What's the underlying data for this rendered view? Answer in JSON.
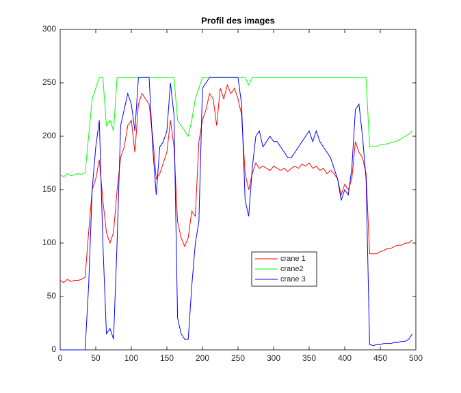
{
  "chart_data": {
    "type": "line",
    "title": "Profil des images",
    "x": [
      0,
      5,
      10,
      15,
      20,
      25,
      30,
      35,
      40,
      45,
      50,
      55,
      60,
      65,
      70,
      75,
      80,
      85,
      90,
      95,
      100,
      105,
      110,
      115,
      120,
      125,
      130,
      135,
      140,
      145,
      150,
      155,
      160,
      165,
      170,
      175,
      180,
      185,
      190,
      195,
      200,
      205,
      210,
      215,
      220,
      225,
      230,
      235,
      240,
      245,
      250,
      255,
      260,
      265,
      270,
      275,
      280,
      285,
      290,
      295,
      300,
      305,
      310,
      315,
      320,
      325,
      330,
      335,
      340,
      345,
      350,
      355,
      360,
      365,
      370,
      375,
      380,
      385,
      390,
      395,
      400,
      405,
      410,
      415,
      420,
      425,
      430,
      435,
      440,
      445,
      450,
      455,
      460,
      465,
      470,
      475,
      480,
      485,
      490,
      495
    ],
    "series": [
      {
        "name": "crane 1",
        "color": "#ff0000",
        "values": [
          65,
          63,
          66,
          64,
          65,
          65,
          66,
          68,
          110,
          150,
          160,
          178,
          140,
          110,
          100,
          110,
          150,
          180,
          190,
          210,
          215,
          185,
          230,
          240,
          235,
          230,
          200,
          160,
          165,
          175,
          185,
          215,
          190,
          120,
          105,
          97,
          105,
          130,
          125,
          195,
          215,
          225,
          240,
          235,
          210,
          245,
          235,
          248,
          240,
          245,
          235,
          220,
          165,
          150,
          165,
          175,
          170,
          172,
          170,
          168,
          172,
          170,
          168,
          170,
          167,
          170,
          172,
          170,
          174,
          172,
          175,
          170,
          172,
          168,
          170,
          165,
          168,
          165,
          160,
          145,
          155,
          150,
          160,
          195,
          185,
          180,
          165,
          90,
          90,
          90,
          92,
          93,
          95,
          95,
          97,
          98,
          98,
          100,
          100,
          103
        ]
      },
      {
        "name": "crane2",
        "color": "#00ff00",
        "values": [
          164,
          162,
          165,
          163,
          164,
          165,
          164,
          166,
          200,
          235,
          245,
          255,
          255,
          210,
          215,
          205,
          255,
          255,
          255,
          255,
          255,
          255,
          255,
          255,
          255,
          255,
          255,
          255,
          255,
          255,
          255,
          255,
          255,
          215,
          210,
          205,
          200,
          215,
          235,
          245,
          255,
          255,
          255,
          255,
          255,
          255,
          255,
          255,
          255,
          255,
          255,
          255,
          255,
          248,
          255,
          255,
          255,
          255,
          255,
          255,
          255,
          255,
          255,
          255,
          255,
          255,
          255,
          255,
          255,
          255,
          255,
          255,
          255,
          255,
          255,
          255,
          255,
          255,
          255,
          255,
          255,
          255,
          255,
          255,
          255,
          255,
          255,
          190,
          191,
          190,
          192,
          192,
          193,
          194,
          195,
          196,
          198,
          200,
          202,
          205
        ]
      },
      {
        "name": "crane 3",
        "color": "#0000ff",
        "values": [
          0,
          0,
          0,
          0,
          0,
          0,
          0,
          0,
          60,
          150,
          190,
          215,
          100,
          15,
          20,
          10,
          100,
          210,
          225,
          240,
          230,
          205,
          255,
          255,
          255,
          255,
          190,
          145,
          190,
          195,
          205,
          250,
          220,
          30,
          15,
          10,
          10,
          60,
          100,
          120,
          245,
          250,
          255,
          255,
          255,
          255,
          255,
          255,
          255,
          255,
          255,
          230,
          140,
          125,
          170,
          200,
          205,
          190,
          195,
          200,
          195,
          195,
          190,
          185,
          180,
          180,
          185,
          190,
          195,
          200,
          205,
          195,
          205,
          195,
          190,
          185,
          180,
          170,
          160,
          140,
          150,
          145,
          170,
          225,
          230,
          200,
          160,
          5,
          4,
          5,
          5,
          6,
          6,
          6,
          7,
          7,
          8,
          8,
          10,
          15
        ]
      }
    ],
    "xlim": [
      0,
      500
    ],
    "xticks": [
      0,
      50,
      100,
      150,
      200,
      250,
      300,
      350,
      400,
      450,
      500
    ],
    "ylim": [
      0,
      300
    ],
    "yticks": [
      0,
      50,
      100,
      150,
      200,
      250,
      300
    ]
  }
}
